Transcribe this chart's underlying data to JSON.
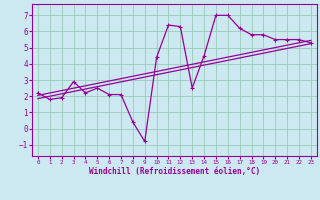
{
  "xlabel": "Windchill (Refroidissement éolien,°C)",
  "xlim": [
    -0.5,
    23.5
  ],
  "ylim": [
    -1.7,
    7.7
  ],
  "xticks": [
    0,
    1,
    2,
    3,
    4,
    5,
    6,
    7,
    8,
    9,
    10,
    11,
    12,
    13,
    14,
    15,
    16,
    17,
    18,
    19,
    20,
    21,
    22,
    23
  ],
  "yticks": [
    -1,
    0,
    1,
    2,
    3,
    4,
    5,
    6,
    7
  ],
  "bg_color": "#cce8f0",
  "line_color": "#990099",
  "grid_color": "#99ccbb",
  "main_line_x": [
    0,
    1,
    2,
    3,
    4,
    5,
    6,
    7,
    8,
    9,
    10,
    11,
    12,
    13,
    14,
    15,
    16,
    17,
    18,
    19,
    20,
    21,
    22,
    23
  ],
  "main_line_y": [
    2.2,
    1.8,
    1.9,
    2.9,
    2.2,
    2.5,
    2.1,
    2.1,
    0.4,
    -0.8,
    4.4,
    6.4,
    6.3,
    2.5,
    4.5,
    7.0,
    7.0,
    6.2,
    5.8,
    5.8,
    5.5,
    5.5,
    5.5,
    5.3
  ],
  "reg_line1_x": [
    0,
    23
  ],
  "reg_line1_y": [
    2.05,
    5.45
  ],
  "reg_line2_x": [
    0,
    23
  ],
  "reg_line2_y": [
    1.85,
    5.25
  ]
}
